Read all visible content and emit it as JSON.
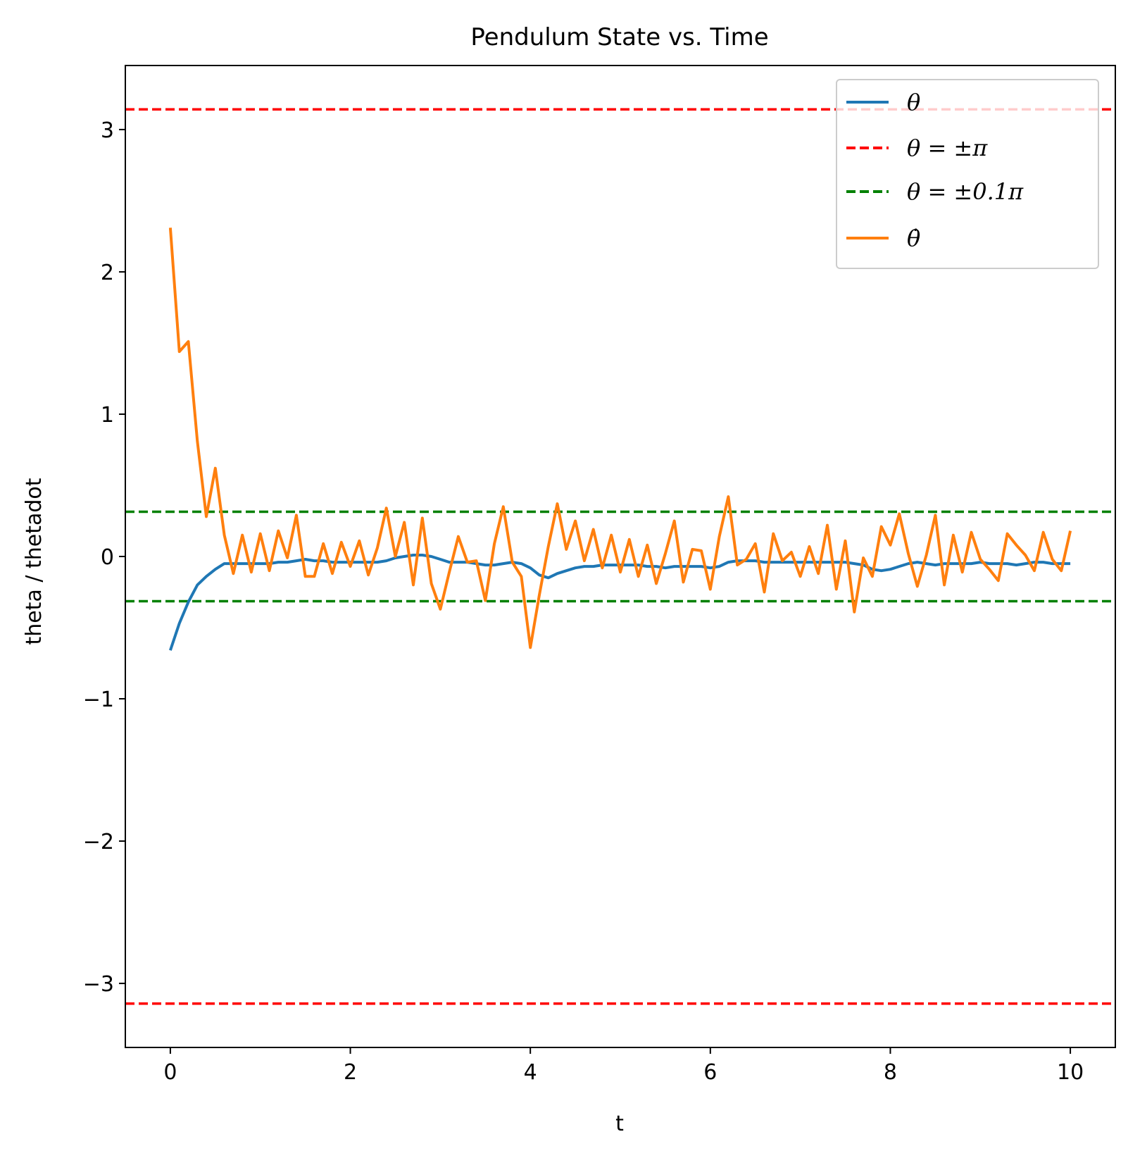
{
  "chart_data": {
    "type": "line",
    "title": "Pendulum State vs. Time",
    "xlabel": "t",
    "ylabel": "theta / thetadot",
    "xlim": [
      -0.5,
      10.5
    ],
    "ylim": [
      -3.45,
      3.45
    ],
    "xticks": [
      0,
      2,
      4,
      6,
      8,
      10
    ],
    "xtick_labels": [
      "0",
      "2",
      "4",
      "6",
      "8",
      "10"
    ],
    "yticks": [
      3,
      2,
      1,
      0,
      -1,
      -2,
      -3
    ],
    "ytick_labels": [
      "3",
      "2",
      "1",
      "0",
      "−1",
      "−2",
      "−3"
    ],
    "grid": false,
    "legend_position": "top-right",
    "series": [
      {
        "name": "θ",
        "color": "#1f77b4",
        "style": "solid",
        "x": [
          0,
          0.1,
          0.2,
          0.3,
          0.4,
          0.5,
          0.6,
          0.7,
          0.8,
          0.9,
          1.0,
          1.1,
          1.2,
          1.3,
          1.4,
          1.5,
          1.6,
          1.7,
          1.8,
          1.9,
          2.0,
          2.1,
          2.2,
          2.3,
          2.4,
          2.5,
          2.6,
          2.7,
          2.8,
          2.9,
          3.0,
          3.1,
          3.2,
          3.3,
          3.4,
          3.5,
          3.6,
          3.7,
          3.8,
          3.9,
          4.0,
          4.1,
          4.2,
          4.3,
          4.4,
          4.5,
          4.6,
          4.7,
          4.8,
          4.9,
          5.0,
          5.1,
          5.2,
          5.3,
          5.4,
          5.5,
          5.6,
          5.7,
          5.8,
          5.9,
          6.0,
          6.1,
          6.2,
          6.3,
          6.4,
          6.5,
          6.6,
          6.7,
          6.8,
          6.9,
          7.0,
          7.1,
          7.2,
          7.3,
          7.4,
          7.5,
          7.6,
          7.7,
          7.8,
          7.9,
          8.0,
          8.1,
          8.2,
          8.3,
          8.4,
          8.5,
          8.6,
          8.7,
          8.8,
          8.9,
          9.0,
          9.1,
          9.2,
          9.3,
          9.4,
          9.5,
          9.6,
          9.7,
          9.8,
          9.9,
          10.0
        ],
        "y": [
          -0.66,
          -0.47,
          -0.32,
          -0.2,
          -0.14,
          -0.09,
          -0.05,
          -0.05,
          -0.05,
          -0.05,
          -0.05,
          -0.05,
          -0.04,
          -0.04,
          -0.03,
          -0.02,
          -0.03,
          -0.03,
          -0.04,
          -0.04,
          -0.04,
          -0.04,
          -0.04,
          -0.04,
          -0.03,
          -0.01,
          0.0,
          0.01,
          0.01,
          0.0,
          -0.02,
          -0.04,
          -0.04,
          -0.04,
          -0.05,
          -0.06,
          -0.06,
          -0.05,
          -0.04,
          -0.05,
          -0.08,
          -0.13,
          -0.15,
          -0.12,
          -0.1,
          -0.08,
          -0.07,
          -0.07,
          -0.06,
          -0.06,
          -0.06,
          -0.06,
          -0.06,
          -0.07,
          -0.07,
          -0.08,
          -0.07,
          -0.07,
          -0.07,
          -0.07,
          -0.08,
          -0.07,
          -0.04,
          -0.03,
          -0.03,
          -0.03,
          -0.04,
          -0.04,
          -0.04,
          -0.04,
          -0.04,
          -0.04,
          -0.04,
          -0.04,
          -0.04,
          -0.04,
          -0.05,
          -0.06,
          -0.09,
          -0.1,
          -0.09,
          -0.07,
          -0.05,
          -0.04,
          -0.05,
          -0.06,
          -0.05,
          -0.05,
          -0.05,
          -0.05,
          -0.04,
          -0.05,
          -0.05,
          -0.05,
          -0.06,
          -0.05,
          -0.04,
          -0.04,
          -0.05,
          -0.05,
          -0.05
        ]
      },
      {
        "name": "θ = ±π",
        "color": "#ff0000",
        "style": "dashed",
        "hlines": [
          3.1416,
          -3.1416
        ]
      },
      {
        "name": "θ = ±0.1π",
        "color": "#008000",
        "style": "dashed",
        "hlines": [
          0.31416,
          -0.31416
        ]
      },
      {
        "name": "θ̇",
        "color": "#ff7f0e",
        "style": "solid",
        "x": [
          0,
          0.1,
          0.2,
          0.3,
          0.4,
          0.5,
          0.6,
          0.7,
          0.8,
          0.9,
          1.0,
          1.1,
          1.2,
          1.3,
          1.4,
          1.5,
          1.6,
          1.7,
          1.8,
          1.9,
          2.0,
          2.1,
          2.2,
          2.3,
          2.4,
          2.5,
          2.6,
          2.7,
          2.8,
          2.9,
          3.0,
          3.1,
          3.2,
          3.3,
          3.4,
          3.5,
          3.6,
          3.7,
          3.8,
          3.9,
          4.0,
          4.1,
          4.2,
          4.3,
          4.4,
          4.5,
          4.6,
          4.7,
          4.8,
          4.9,
          5.0,
          5.1,
          5.2,
          5.3,
          5.4,
          5.5,
          5.6,
          5.7,
          5.8,
          5.9,
          6.0,
          6.1,
          6.2,
          6.3,
          6.4,
          6.5,
          6.6,
          6.7,
          6.8,
          6.9,
          7.0,
          7.1,
          7.2,
          7.3,
          7.4,
          7.5,
          7.6,
          7.7,
          7.8,
          7.9,
          8.0,
          8.1,
          8.2,
          8.3,
          8.4,
          8.5,
          8.6,
          8.7,
          8.8,
          8.9,
          9.0,
          9.1,
          9.2,
          9.3,
          9.4,
          9.5,
          9.6,
          9.7,
          9.8,
          9.9,
          10.0
        ],
        "y": [
          2.31,
          1.44,
          1.51,
          0.81,
          0.28,
          0.62,
          0.15,
          -0.12,
          0.15,
          -0.11,
          0.16,
          -0.1,
          0.18,
          -0.01,
          0.29,
          -0.14,
          -0.14,
          0.09,
          -0.12,
          0.1,
          -0.07,
          0.11,
          -0.13,
          0.06,
          0.34,
          0.0,
          0.24,
          -0.2,
          0.27,
          -0.19,
          -0.37,
          -0.11,
          0.14,
          -0.04,
          -0.03,
          -0.31,
          0.09,
          0.35,
          -0.04,
          -0.14,
          -0.64,
          -0.27,
          0.07,
          0.37,
          0.05,
          0.25,
          -0.03,
          0.19,
          -0.08,
          0.15,
          -0.11,
          0.12,
          -0.14,
          0.08,
          -0.19,
          0.02,
          0.25,
          -0.18,
          0.05,
          0.04,
          -0.23,
          0.14,
          0.42,
          -0.06,
          -0.02,
          0.09,
          -0.25,
          0.16,
          -0.03,
          0.03,
          -0.14,
          0.07,
          -0.12,
          0.22,
          -0.23,
          0.11,
          -0.39,
          -0.01,
          -0.14,
          0.21,
          0.08,
          0.3,
          0.02,
          -0.21,
          0.01,
          0.29,
          -0.2,
          0.15,
          -0.11,
          0.17,
          -0.02,
          -0.09,
          -0.17,
          0.16,
          0.08,
          0.01,
          -0.1,
          0.17,
          -0.02,
          -0.1,
          0.18
        ]
      }
    ]
  }
}
